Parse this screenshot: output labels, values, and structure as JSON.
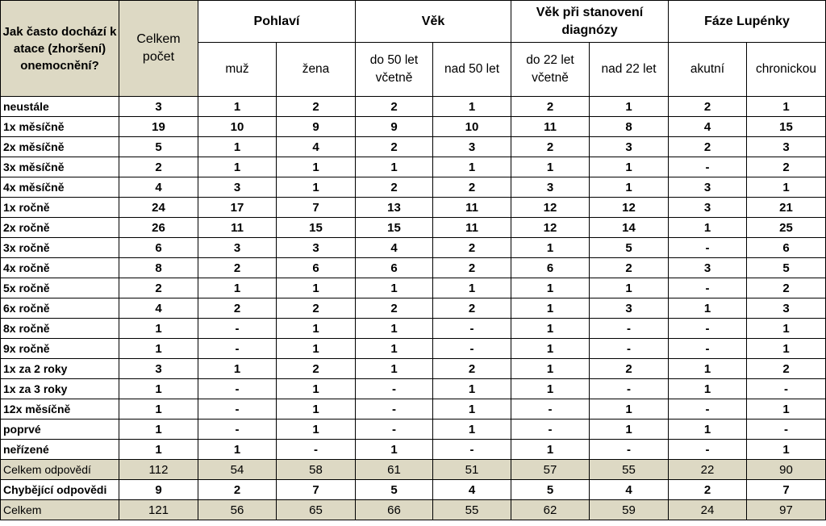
{
  "header": {
    "corner": "Jak často dochází k atace (zhoršení) onemocnění?",
    "total": "Celkem počet",
    "groups": [
      {
        "label": "Pohlaví",
        "subs": [
          "muž",
          "žena"
        ]
      },
      {
        "label": "Věk",
        "subs": [
          "do 50 let včetně",
          "nad 50 let"
        ]
      },
      {
        "label": "Věk při stanovení diagnózy",
        "subs": [
          "do 22 let včetně",
          "nad 22 let"
        ]
      },
      {
        "label": "Fáze Lupénky",
        "subs": [
          "akutní",
          "chronickou"
        ]
      }
    ]
  },
  "rows": [
    {
      "label": "neustále",
      "values": [
        "3",
        "1",
        "2",
        "2",
        "1",
        "2",
        "1",
        "2",
        "1"
      ]
    },
    {
      "label": "1x měsíčně",
      "values": [
        "19",
        "10",
        "9",
        "9",
        "10",
        "11",
        "8",
        "4",
        "15"
      ]
    },
    {
      "label": "2x měsíčně",
      "values": [
        "5",
        "1",
        "4",
        "2",
        "3",
        "2",
        "3",
        "2",
        "3"
      ]
    },
    {
      "label": "3x měsíčně",
      "values": [
        "2",
        "1",
        "1",
        "1",
        "1",
        "1",
        "1",
        "-",
        "2"
      ]
    },
    {
      "label": "4x měsíčně",
      "values": [
        "4",
        "3",
        "1",
        "2",
        "2",
        "3",
        "1",
        "3",
        "1"
      ]
    },
    {
      "label": "1x ročně",
      "values": [
        "24",
        "17",
        "7",
        "13",
        "11",
        "12",
        "12",
        "3",
        "21"
      ]
    },
    {
      "label": "2x ročně",
      "values": [
        "26",
        "11",
        "15",
        "15",
        "11",
        "12",
        "14",
        "1",
        "25"
      ]
    },
    {
      "label": "3x ročně",
      "values": [
        "6",
        "3",
        "3",
        "4",
        "2",
        "1",
        "5",
        "-",
        "6"
      ]
    },
    {
      "label": "4x ročně",
      "values": [
        "8",
        "2",
        "6",
        "6",
        "2",
        "6",
        "2",
        "3",
        "5"
      ]
    },
    {
      "label": "5x ročně",
      "values": [
        "2",
        "1",
        "1",
        "1",
        "1",
        "1",
        "1",
        "-",
        "2"
      ]
    },
    {
      "label": "6x ročně",
      "values": [
        "4",
        "2",
        "2",
        "2",
        "2",
        "1",
        "3",
        "1",
        "3"
      ]
    },
    {
      "label": "8x ročně",
      "values": [
        "1",
        "-",
        "1",
        "1",
        "-",
        "1",
        "-",
        "-",
        "1"
      ]
    },
    {
      "label": "9x ročně",
      "values": [
        "1",
        "-",
        "1",
        "1",
        "-",
        "1",
        "-",
        "-",
        "1"
      ]
    },
    {
      "label": "1x za 2 roky",
      "values": [
        "3",
        "1",
        "2",
        "1",
        "2",
        "1",
        "2",
        "1",
        "2"
      ]
    },
    {
      "label": "1x za 3 roky",
      "values": [
        "1",
        "-",
        "1",
        "-",
        "1",
        "1",
        "-",
        "1",
        "-"
      ]
    },
    {
      "label": "12x měsíčně",
      "values": [
        "1",
        "-",
        "1",
        "-",
        "1",
        "-",
        "1",
        "-",
        "1"
      ]
    },
    {
      "label": "poprvé",
      "values": [
        "1",
        "-",
        "1",
        "-",
        "1",
        "-",
        "1",
        "1",
        "-"
      ]
    },
    {
      "label": "neřízené",
      "values": [
        "1",
        "1",
        "-",
        "1",
        "-",
        "1",
        "-",
        "-",
        "1"
      ]
    }
  ],
  "summary": [
    {
      "label": "Celkem odpovědí",
      "values": [
        "112",
        "54",
        "58",
        "61",
        "51",
        "57",
        "55",
        "22",
        "90"
      ],
      "style": "sum"
    },
    {
      "label": "Chybějící odpovědi",
      "values": [
        "9",
        "2",
        "7",
        "5",
        "4",
        "5",
        "4",
        "2",
        "7"
      ],
      "style": "miss"
    },
    {
      "label": "Celkem",
      "values": [
        "121",
        "56",
        "65",
        "66",
        "55",
        "62",
        "59",
        "24",
        "97"
      ],
      "style": "sum"
    }
  ],
  "colors": {
    "shaded": "#ddd9c4",
    "border": "#000000"
  }
}
